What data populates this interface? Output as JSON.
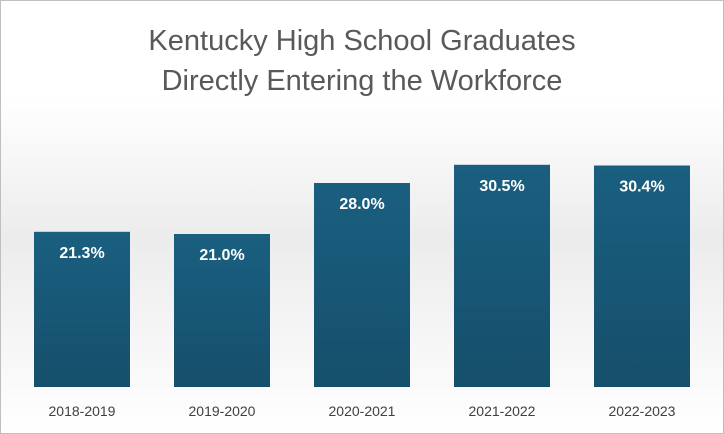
{
  "chart_data": {
    "type": "bar",
    "title_line1": "Kentucky High School Graduates",
    "title_line2": "Directly Entering the Workforce",
    "xlabel": "",
    "ylabel": "",
    "categories": [
      "2018-2019",
      "2019-2020",
      "2020-2021",
      "2021-2022",
      "2022-2023"
    ],
    "values": [
      21.3,
      21.0,
      28.0,
      30.5,
      30.4
    ],
    "data_labels": [
      "21.3%",
      "21.0%",
      "28.0%",
      "30.5%",
      "30.4%"
    ],
    "ylim": [
      0,
      35
    ],
    "grid": false,
    "legend": "none",
    "bar_color_top": "#1a5f80",
    "bar_color_bottom": "#154f6b",
    "label_color": "#ffffff",
    "tick_color": "#404040"
  }
}
